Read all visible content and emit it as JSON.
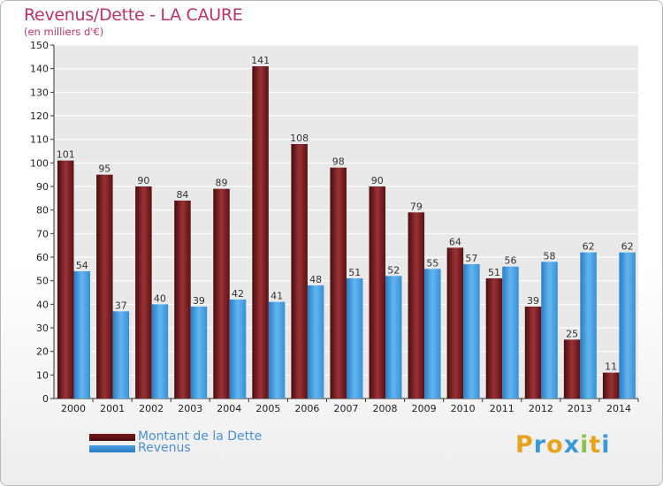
{
  "chart_data": {
    "type": "bar",
    "title": "Revenus/Dette - LA CAURE",
    "subtitle": "(en milliers d'€)",
    "categories": [
      "2000",
      "2001",
      "2002",
      "2003",
      "2004",
      "2005",
      "2006",
      "2007",
      "2008",
      "2009",
      "2010",
      "2011",
      "2012",
      "2013",
      "2014"
    ],
    "series": [
      {
        "name": "Montant de la Dette",
        "color": "#7a1a1c",
        "values": [
          101,
          95,
          90,
          84,
          89,
          141,
          108,
          98,
          90,
          79,
          64,
          51,
          39,
          25,
          11
        ]
      },
      {
        "name": "Revenus",
        "color": "#4a9fe0",
        "values": [
          54,
          37,
          40,
          39,
          42,
          41,
          48,
          51,
          52,
          55,
          57,
          56,
          58,
          62,
          62
        ]
      }
    ],
    "yticks": [
      0,
      10,
      20,
      30,
      40,
      50,
      60,
      70,
      80,
      90,
      100,
      110,
      120,
      130,
      140,
      150
    ],
    "ylim": [
      0,
      150
    ],
    "grid": true,
    "legend_position": "bottom-left"
  },
  "brand": {
    "letters": [
      "P",
      "r",
      "o",
      "x",
      "i",
      "t",
      "i"
    ],
    "colors": [
      "#e8a21c",
      "#3a9ad9",
      "#e8a21c",
      "#3a9ad9",
      "#8bc34a",
      "#e8a21c",
      "#3a9ad9"
    ]
  }
}
